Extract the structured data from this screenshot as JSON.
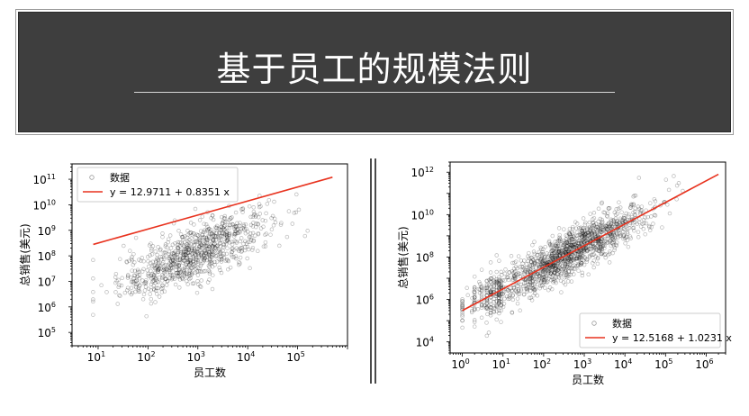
{
  "header": {
    "title": "基于员工的规模法则"
  },
  "chart_data": [
    {
      "type": "scatter",
      "xlabel": "员工数",
      "ylabel": "总销售(美元)",
      "xscale": "log",
      "yscale": "log",
      "xlim": [
        3,
        1000000
      ],
      "ylim": [
        30000,
        400000000000
      ],
      "xticks": [
        {
          "base": "10",
          "exp": "1",
          "v": 10
        },
        {
          "base": "10",
          "exp": "2",
          "v": 100
        },
        {
          "base": "10",
          "exp": "3",
          "v": 1000
        },
        {
          "base": "10",
          "exp": "4",
          "v": 10000
        },
        {
          "base": "10",
          "exp": "5",
          "v": 100000
        }
      ],
      "yticks": [
        {
          "base": "10",
          "exp": "5",
          "v": 100000
        },
        {
          "base": "10",
          "exp": "6",
          "v": 1000000
        },
        {
          "base": "10",
          "exp": "7",
          "v": 10000000
        },
        {
          "base": "10",
          "exp": "8",
          "v": 100000000
        },
        {
          "base": "10",
          "exp": "9",
          "v": 1000000000
        },
        {
          "base": "10",
          "exp": "10",
          "v": 10000000000
        },
        {
          "base": "10",
          "exp": "11",
          "v": 100000000000
        }
      ],
      "legend_position": "upper-left",
      "series": [
        {
          "name": "数据",
          "kind": "points",
          "color": "#000000",
          "note_scatter": "approx. 1000 points, log10 x centered near 3, log10 y centered near 8.5",
          "cloud": {
            "n": 900,
            "cx": 2.95,
            "sx": 0.75,
            "intercept": 5.63,
            "slope": 0.8351,
            "sy": 0.55,
            "xmin": 0.9,
            "xmax": 5.7
          }
        },
        {
          "name": "y = 12.9711 + 0.8351 x",
          "kind": "fit",
          "color": "#e8321e",
          "x": [
            8,
            500000
          ],
          "y": [
            280000000,
            120000000000
          ]
        }
      ],
      "legend": [
        {
          "label": "数据"
        },
        {
          "label": "y = 12.9711 + 0.8351 x"
        }
      ]
    },
    {
      "type": "scatter",
      "xlabel": "员工数",
      "ylabel": "总销售(美元)",
      "xscale": "log",
      "yscale": "log",
      "xlim": [
        0.5,
        3000000
      ],
      "ylim": [
        3000,
        3000000000000
      ],
      "xticks": [
        {
          "base": "10",
          "exp": "0",
          "v": 1
        },
        {
          "base": "10",
          "exp": "1",
          "v": 10
        },
        {
          "base": "10",
          "exp": "2",
          "v": 100
        },
        {
          "base": "10",
          "exp": "3",
          "v": 1000
        },
        {
          "base": "10",
          "exp": "4",
          "v": 10000
        },
        {
          "base": "10",
          "exp": "5",
          "v": 100000
        },
        {
          "base": "10",
          "exp": "6",
          "v": 1000000
        }
      ],
      "yticks": [
        {
          "base": "10",
          "exp": "4",
          "v": 10000
        },
        {
          "base": "10",
          "exp": "6",
          "v": 1000000
        },
        {
          "base": "10",
          "exp": "8",
          "v": 100000000
        },
        {
          "base": "10",
          "exp": "10",
          "v": 10000000000
        },
        {
          "base": "10",
          "exp": "12",
          "v": 1000000000000
        }
      ],
      "legend_position": "lower-right",
      "series": [
        {
          "name": "数据",
          "kind": "points",
          "color": "#000000",
          "cloud": {
            "n": 1500,
            "cx": 2.7,
            "sx": 0.95,
            "intercept": 5.45,
            "slope": 1.0231,
            "sy": 0.55,
            "xmin": 0,
            "xmax": 6.25
          }
        },
        {
          "name": "y = 12.5168 + 1.0231 x",
          "kind": "fit",
          "color": "#e8321e",
          "x": [
            1,
            2000000
          ],
          "y": [
            300000,
            800000000000
          ]
        }
      ],
      "legend": [
        {
          "label": "数据"
        },
        {
          "label": "y = 12.5168 + 1.0231 x"
        }
      ]
    }
  ]
}
